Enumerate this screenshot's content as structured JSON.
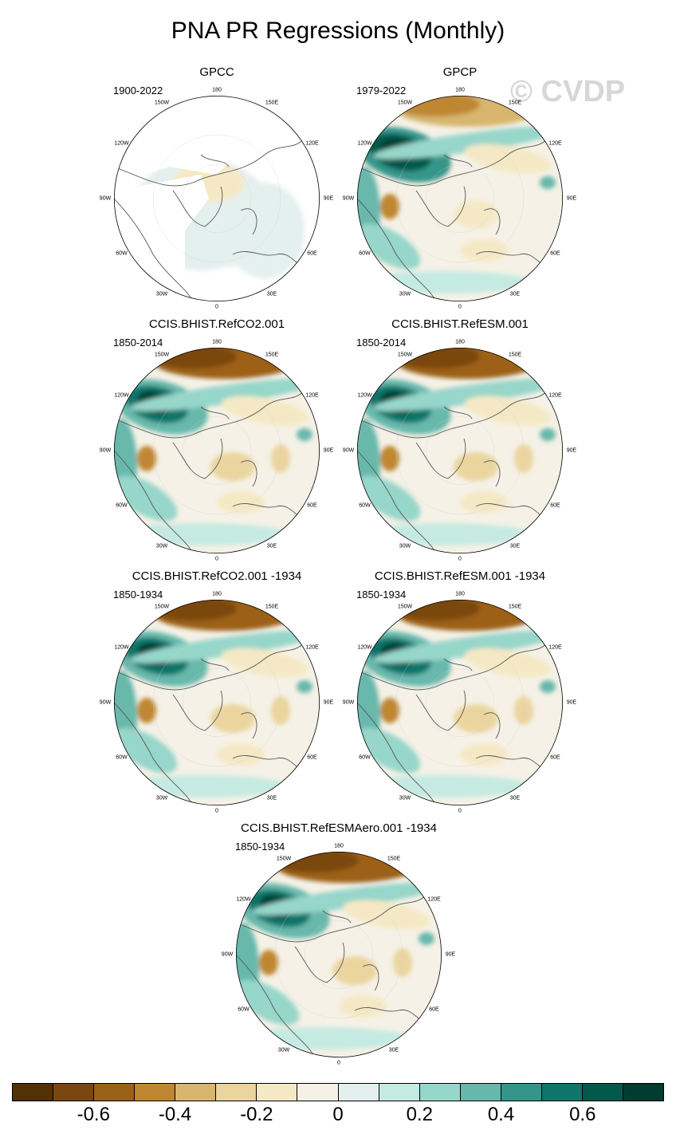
{
  "title": "PNA PR Regressions (Monthly)",
  "watermark": "© CVDP",
  "longitude_labels": [
    "180",
    "150E",
    "120E",
    "90E",
    "60E",
    "30E",
    "0",
    "30W",
    "60W",
    "90W",
    "120W",
    "150W"
  ],
  "panels": [
    {
      "title": "GPCC",
      "period": "1900-2022",
      "style": "obs_gpcc"
    },
    {
      "title": "GPCP",
      "period": "1979-2022",
      "style": "obs_gpcp"
    },
    {
      "title": "CCIS.BHIST.RefCO2.001",
      "period": "1850-2014",
      "style": "model"
    },
    {
      "title": "CCIS.BHIST.RefESM.001",
      "period": "1850-2014",
      "style": "model"
    },
    {
      "title": "CCIS.BHIST.RefCO2.001 -1934",
      "period": "1850-1934",
      "style": "model"
    },
    {
      "title": "CCIS.BHIST.RefESM.001 -1934",
      "period": "1850-1934",
      "style": "model"
    },
    {
      "title": "CCIS.BHIST.RefESMAero.001 -1934",
      "period": "1850-1934",
      "style": "model"
    }
  ],
  "colorbar": {
    "colors": [
      "#543005",
      "#7a4710",
      "#9c6119",
      "#bf8732",
      "#d8b66e",
      "#ebd59f",
      "#f5e9c5",
      "#f5f1e6",
      "#e4f0ee",
      "#c5eae1",
      "#97d6ca",
      "#67b8ac",
      "#35958a",
      "#0f756a",
      "#005a4c",
      "#003c30"
    ],
    "labels": [
      "-0.6",
      "-0.4",
      "-0.2",
      "0",
      "0.2",
      "0.4",
      "0.6"
    ]
  }
}
